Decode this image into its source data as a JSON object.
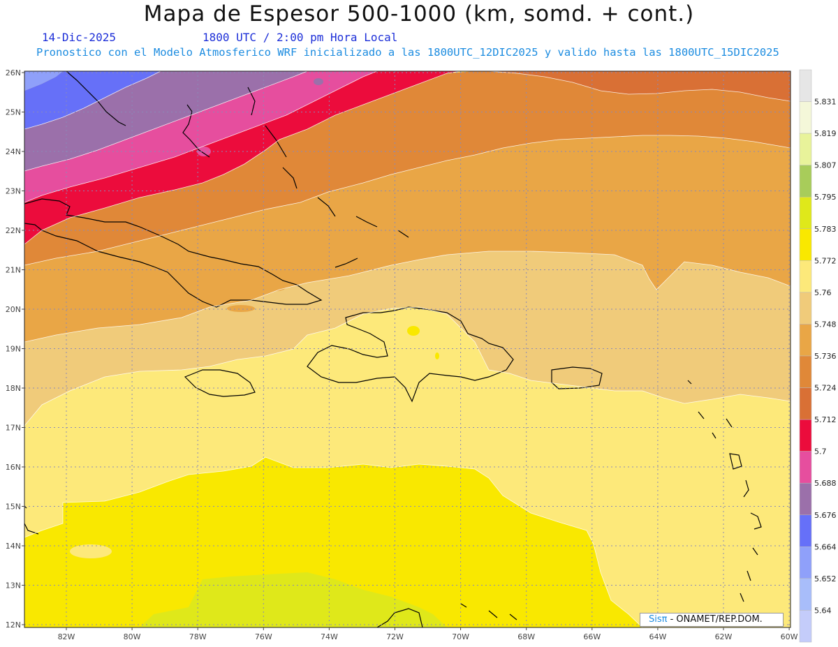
{
  "header": {
    "title": "Mapa de Espesor 500-1000 (km, somd. + cont.)",
    "date": "14-Dic-2025",
    "time": "1800 UTC / 2:00 pm Hora Local",
    "subtitle": "Pronostico con el Modelo Atmosferico WRF inicializado a las 1800UTC_12DIC2025 y valido hasta las  1800UTC_15DIC2025"
  },
  "map": {
    "lat_labels": [
      "26N",
      "25N",
      "24N",
      "23N",
      "22N",
      "21N",
      "20N",
      "19N",
      "18N",
      "17N",
      "16N",
      "15N",
      "14N",
      "13N",
      "12N"
    ],
    "lon_labels": [
      "82W",
      "80W",
      "78W",
      "76W",
      "74W",
      "72W",
      "70W",
      "68W",
      "66W",
      "64W",
      "62W",
      "60W"
    ],
    "grid": true,
    "colors": {
      "lt_gray": "#e6e6e6",
      "band_5831": "#f4f7d9",
      "band_5819": "#e8f39a",
      "band_5807": "#a8cc5a",
      "band_5795": "#dfe81a",
      "band_5783": "#f9e800",
      "band_5772": "#fde97a",
      "band_5760": "#f0cb7a",
      "band_5748": "#e9a646",
      "band_5736": "#e08838",
      "band_5724": "#d97035",
      "band_5712": "#ec0c3c",
      "band_5700": "#e64e9e",
      "band_5688": "#9b70aa",
      "band_5676": "#6670f8",
      "band_5664": "#8fa0fa",
      "band_5652": "#a8bdfa",
      "band_5640": "#c4ccfa"
    }
  },
  "colorbar": {
    "labels": [
      "5.831",
      "5.819",
      "5.807",
      "5.795",
      "5.783",
      "5.772",
      "5.76",
      "5.748",
      "5.736",
      "5.724",
      "5.712",
      "5.7",
      "5.688",
      "5.676",
      "5.664",
      "5.652",
      "5.64"
    ],
    "colors": [
      "#e6e6e6",
      "#f4f7d9",
      "#e8f39a",
      "#a8cc5a",
      "#dfe81a",
      "#f9e800",
      "#fde97a",
      "#f0cb7a",
      "#e9a646",
      "#e08838",
      "#d97035",
      "#ec0c3c",
      "#e64e9e",
      "#9b70aa",
      "#6670f8",
      "#8fa0fa",
      "#a8bdfa",
      "#c4ccfa"
    ]
  },
  "credit": {
    "sis": "Sisπ",
    "org": " - ONAMET/REP.DOM."
  }
}
